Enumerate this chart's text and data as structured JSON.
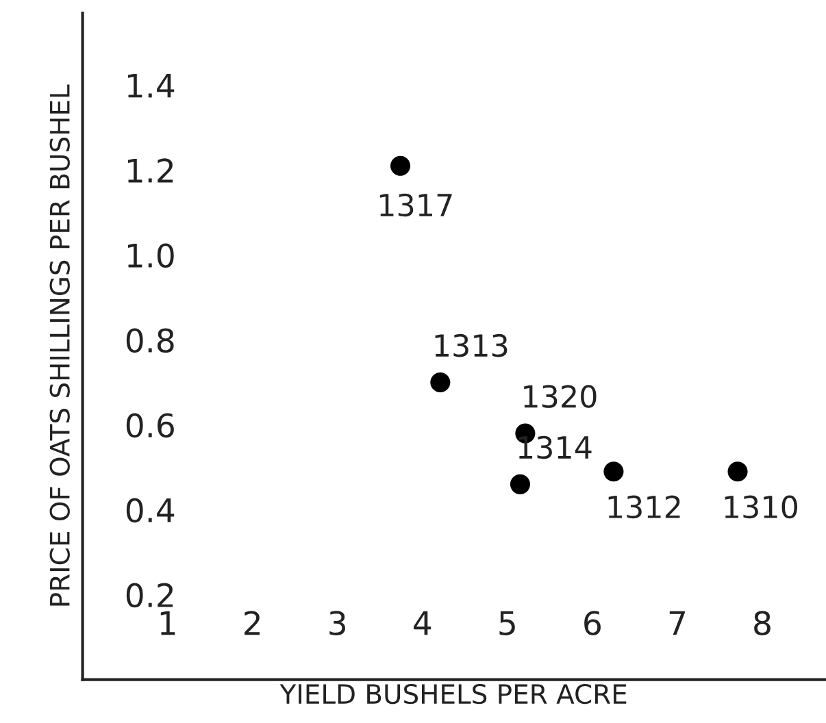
{
  "chart_data": {
    "type": "scatter",
    "xlabel": "YIELD BUSHELS PER ACRE",
    "ylabel": "PRICE OF OATS SHILLINGS PER BUSHEL",
    "x": [
      3.74,
      4.21,
      5.21,
      5.15,
      6.25,
      7.71
    ],
    "series": [
      {
        "color": "#000000",
        "values": [
          1.21,
          0.7,
          0.58,
          0.46,
          0.49,
          0.49
        ]
      }
    ],
    "annotations": [
      {
        "text": "1317",
        "x": 3.74,
        "y": 1.21
      },
      {
        "text": "1313",
        "x": 4.21,
        "y": 0.7
      },
      {
        "text": "1320",
        "x": 5.21,
        "y": 0.58
      },
      {
        "text": "1314",
        "x": 5.15,
        "y": 0.46
      },
      {
        "text": "1312",
        "x": 6.25,
        "y": 0.49
      },
      {
        "text": "1310",
        "x": 7.71,
        "y": 0.49
      }
    ],
    "xlim": [
      0,
      8.74
    ],
    "ylim": [
      0,
      1.57
    ],
    "xticks": [
      1,
      2,
      3,
      4,
      5,
      6,
      7,
      8
    ],
    "yticks": [
      {
        "value": 0.2,
        "label": "0.2"
      },
      {
        "value": 0.4,
        "label": "0.4"
      },
      {
        "value": 0.6,
        "label": "0.6"
      },
      {
        "value": 0.8,
        "label": "0.8"
      },
      {
        "value": 1.0,
        "label": "1.0"
      },
      {
        "value": 1.2,
        "label": "1.2"
      },
      {
        "value": 1.4,
        "label": "1.4"
      }
    ],
    "grid": false,
    "legend": false,
    "marker": "circle"
  }
}
